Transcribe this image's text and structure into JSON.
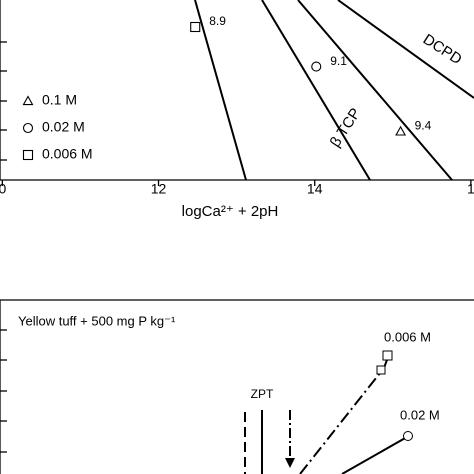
{
  "chart_data": [
    {
      "type": "scatter",
      "xlabel": "logCa²⁺ + 2pH",
      "xlim": [
        9.97,
        16.04
      ],
      "ylim": [
        0,
        100
      ],
      "xticks": [
        {
          "value": 10,
          "label": "0"
        },
        12,
        14,
        {
          "value": 16,
          "label": "1"
        }
      ],
      "line_labels": [
        "DCPD",
        "β TCP"
      ],
      "series": [
        {
          "name": "0.1 M",
          "marker": "triangle",
          "x": [
            15.1
          ],
          "values": [
            27
          ],
          "annotations": [
            "9.4"
          ]
        },
        {
          "name": "0.02 M",
          "marker": "circle",
          "x": [
            14.02
          ],
          "values": [
            63
          ],
          "annotations": [
            "9.1"
          ]
        },
        {
          "name": "0.006 M",
          "marker": "square",
          "x": [
            12.47
          ],
          "values": [
            85
          ],
          "annotations": [
            "8.9"
          ]
        }
      ]
    },
    {
      "type": "line",
      "title": "Yellow tuff + 500 mg P kg⁻¹",
      "annotations": [
        "0.006 M",
        "0.02 M",
        "ZPT"
      ]
    }
  ]
}
